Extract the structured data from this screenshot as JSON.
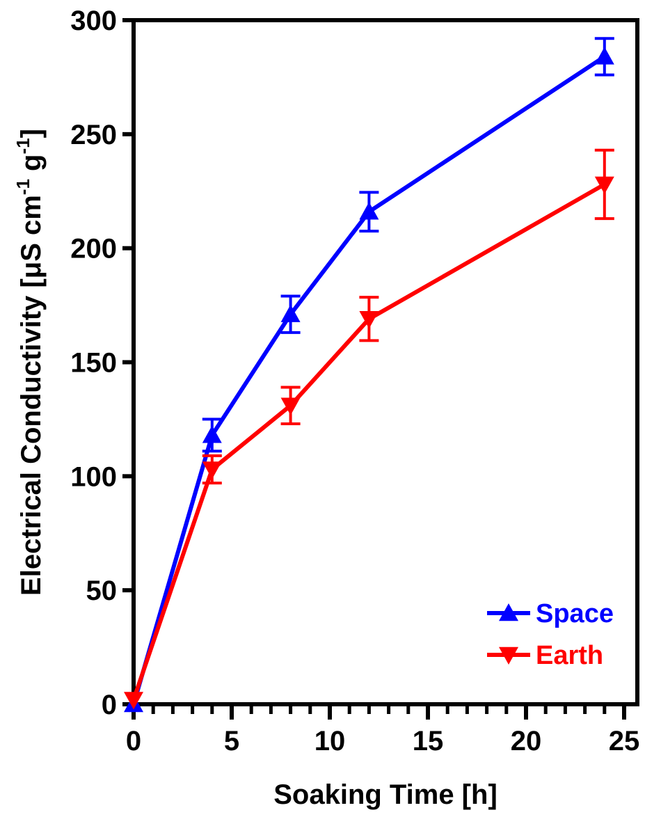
{
  "chart_data": {
    "type": "line",
    "title": "",
    "xlabel": "Soaking Time [h]",
    "ylabel": {
      "main": "Electrical Conductivity [μS cm",
      "sup1": "-1",
      "mid": " g",
      "sup2": "-1",
      "end": "]"
    },
    "xlim": [
      0,
      25
    ],
    "ylim": [
      0,
      300
    ],
    "x_ticks": [
      0,
      5,
      10,
      15,
      20,
      25
    ],
    "x_tick_labels": [
      "0",
      "5",
      "10",
      "15",
      "20",
      "25"
    ],
    "x_minor_step": 1,
    "y_ticks": [
      0,
      50,
      100,
      150,
      200,
      250,
      300
    ],
    "y_tick_labels": [
      "0",
      "50",
      "100",
      "150",
      "200",
      "250",
      "300"
    ],
    "grid": false,
    "legend_position": "bottom-right",
    "series": [
      {
        "name": "Space",
        "color": "#0000ff",
        "marker": "triangle-up",
        "x": [
          0,
          4,
          8,
          12,
          24
        ],
        "y": [
          0,
          118,
          171,
          216,
          284
        ],
        "err": [
          0,
          7,
          8,
          8.5,
          8
        ]
      },
      {
        "name": "Earth",
        "color": "#ff0000",
        "marker": "triangle-down",
        "x": [
          0,
          4,
          8,
          12,
          24
        ],
        "y": [
          2,
          103,
          131,
          169,
          228
        ],
        "err": [
          0,
          6,
          8,
          9.5,
          15
        ]
      }
    ]
  }
}
